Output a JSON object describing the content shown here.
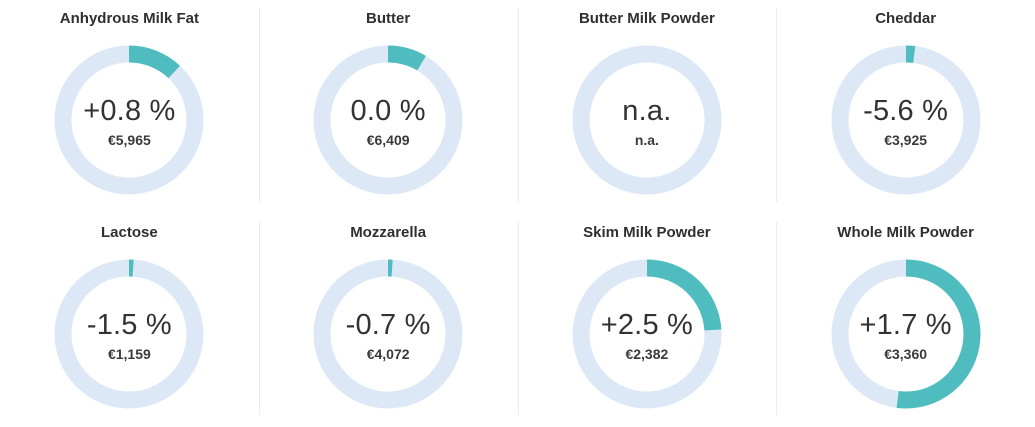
{
  "colors": {
    "track": "#dde8f6",
    "arc": "#4fbdbf",
    "text": "#333333"
  },
  "chart_data": [
    {
      "type": "donut",
      "title": "Anhydrous Milk Fat",
      "change": 0.8,
      "label": "+0.8 %",
      "price": "€5,965",
      "arc_fraction": 0.12
    },
    {
      "type": "donut",
      "title": "Butter",
      "change": 0.0,
      "label": "0.0 %",
      "price": "€6,409",
      "arc_fraction": 0.085
    },
    {
      "type": "donut",
      "title": "Butter Milk Powder",
      "change": null,
      "label": "n.a.",
      "price": "n.a.",
      "arc_fraction": 0
    },
    {
      "type": "donut",
      "title": "Cheddar",
      "change": -5.6,
      "label": "-5.6 %",
      "price": "€3,925",
      "arc_fraction": 0.02
    },
    {
      "type": "donut",
      "title": "Lactose",
      "change": -1.5,
      "label": "-1.5 %",
      "price": "€1,159",
      "arc_fraction": 0.01
    },
    {
      "type": "donut",
      "title": "Mozzarella",
      "change": -0.7,
      "label": "-0.7 %",
      "price": "€4,072",
      "arc_fraction": 0.01
    },
    {
      "type": "donut",
      "title": "Skim Milk Powder",
      "change": 2.5,
      "label": "+2.5 %",
      "price": "€2,382",
      "arc_fraction": 0.24
    },
    {
      "type": "donut",
      "title": "Whole Milk Powder",
      "change": 1.7,
      "label": "+1.7 %",
      "price": "€3,360",
      "arc_fraction": 0.52
    }
  ]
}
